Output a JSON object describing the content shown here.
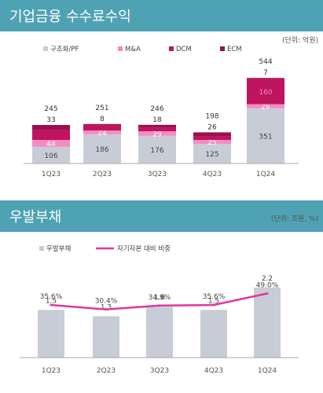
{
  "colors": {
    "banner": "#4fa2b4",
    "gray_bar": "#c8ccd6",
    "light_pink": "#f28dc3",
    "pink": "#e8409c",
    "magenta": "#c0145f",
    "dark_magenta": "#9c0f4c",
    "line": "#e0369c"
  },
  "section1": {
    "title": "기업금융 수수료수익",
    "unit": "(단위: 억원)"
  },
  "section2": {
    "title": "우발부채",
    "unit": "(단위: 조원, %)"
  },
  "chart_data": [
    {
      "type": "bar",
      "stacked": true,
      "categories": [
        "1Q23",
        "2Q23",
        "3Q23",
        "4Q23",
        "1Q24"
      ],
      "series": [
        {
          "name": "구조화/PF",
          "values": [
            106,
            186,
            176,
            125,
            351
          ],
          "labels": [
            "106",
            "186",
            "176",
            "125",
            "351"
          ]
        },
        {
          "name": "M&A",
          "values": [
            44,
            24,
            29,
            25,
            26
          ],
          "labels": [
            "44",
            "24",
            "29",
            "25",
            "26"
          ]
        },
        {
          "name": "DCM",
          "values": [
            62,
            33,
            23,
            22,
            160
          ],
          "labels": [
            "",
            "",
            "",
            "",
            "160"
          ]
        },
        {
          "name": "ECM",
          "values": [
            33,
            8,
            18,
            26,
            7
          ],
          "labels": [
            "33",
            "8",
            "18",
            "26",
            "7"
          ]
        }
      ],
      "totals": [
        "245",
        "251",
        "246",
        "198",
        "544"
      ],
      "legend_position": "top",
      "grid": false
    },
    {
      "type": "bar",
      "categories": [
        "1Q23",
        "2Q23",
        "3Q23",
        "4Q23",
        "1Q24"
      ],
      "series": [
        {
          "name": "우발부채",
          "type": "bar",
          "values": [
            1.5,
            1.3,
            1.6,
            1.5,
            2.2
          ],
          "labels": [
            "1.5",
            "1.3",
            "1.6",
            "1.5",
            "2.2"
          ]
        },
        {
          "name": "자기자본 대비 비중",
          "type": "line",
          "values": [
            35.6,
            30.4,
            34.9,
            35.6,
            49.0
          ],
          "labels": [
            "35.6%",
            "30.4%",
            "34.9%",
            "35.6%",
            "49.0%"
          ]
        }
      ],
      "legend_position": "top",
      "grid": false
    }
  ]
}
